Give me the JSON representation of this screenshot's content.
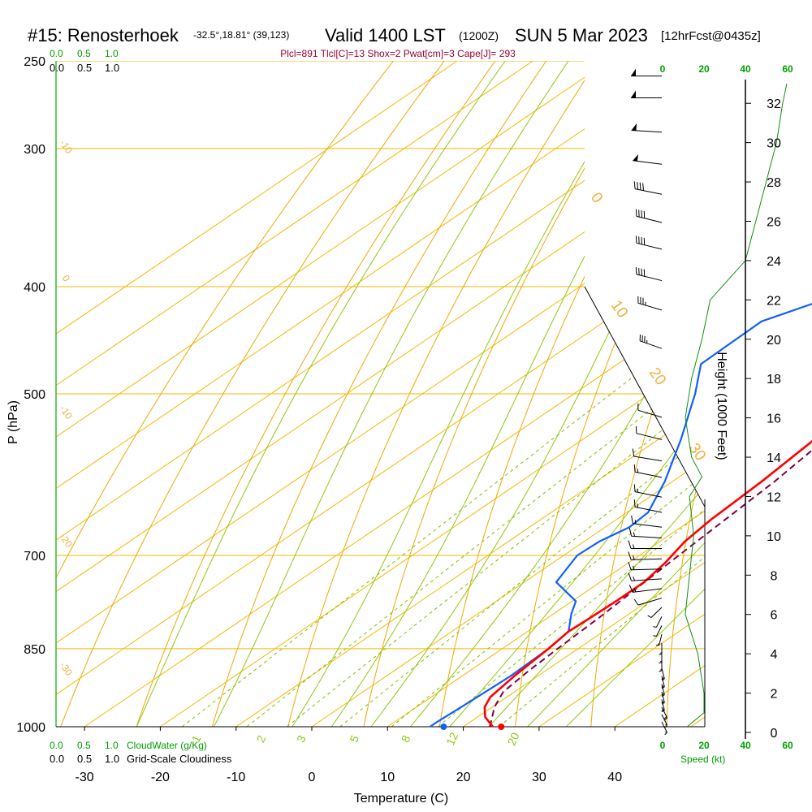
{
  "header": {
    "station": "#15: Renosterhoek",
    "coords": "-32.5°,18.81° (39,123)",
    "valid": "Valid 1400 LST",
    "zulu": "(1200Z)",
    "date": "SUN 5 Mar 2023",
    "forecast": "[12hrFcst@0435z]",
    "indices": "Plcl=891 Tlcl[C]=13 Shox=2 Pwat[cm]=3 Cape[J]= 293"
  },
  "labels": {
    "pressure_axis": "P (hPa)",
    "height_axis": "Height (1000 Feet)",
    "temp_axis": "Temperature (C)",
    "cloudwater": "CloudWater (g/Kg)",
    "cloudiness": "Grid-Scale Cloudiness",
    "speed": "Speed (kt)",
    "scale_a": [
      "0.0",
      "0.5",
      "1.0"
    ],
    "scale_b": [
      "0.0",
      "0.5",
      "1.0"
    ],
    "speed_ticks": [
      "0",
      "20",
      "40",
      "60"
    ]
  },
  "colors": {
    "isotherm": "#f5b800",
    "dry_adiabat": "#f0a800",
    "moist_adiabat": "#90c810",
    "mixing_ratio": "#80c000",
    "temperature": "#ff0000",
    "dewpoint": "#1060ff",
    "parcel": "#800040",
    "wind_speed": "#109010",
    "green_text": "#00a000"
  },
  "chart_data": {
    "type": "skew-t",
    "title": "#15: Renosterhoek Valid 1400 LST (1200Z) SUN 5 Mar 2023",
    "xlabel": "Temperature (C)",
    "ylabel": "P (hPa)",
    "x_ticks": [
      -30,
      -20,
      -10,
      0,
      10,
      20,
      30,
      40
    ],
    "p_ticks": [
      250,
      300,
      400,
      500,
      700,
      850,
      1000
    ],
    "height_ticks_kft": [
      0,
      2,
      4,
      6,
      8,
      10,
      12,
      14,
      16,
      18,
      20,
      22,
      24,
      26,
      28,
      30,
      32
    ],
    "isotherm_labels": [
      -30,
      -20,
      -10,
      0,
      10,
      20,
      30
    ],
    "mixing_ratio_labels": [
      "1",
      "2",
      "3",
      "5",
      "8",
      "12",
      "20"
    ],
    "temperature": [
      {
        "p": 1000,
        "t": 23.9
      },
      {
        "p": 980,
        "t": 21.0
      },
      {
        "p": 960,
        "t": 19.0
      },
      {
        "p": 940,
        "t": 17.8
      },
      {
        "p": 900,
        "t": 16.9
      },
      {
        "p": 850,
        "t": 16.1
      },
      {
        "p": 820,
        "t": 15.4
      },
      {
        "p": 800,
        "t": 15.6
      },
      {
        "p": 770,
        "t": 15.8
      },
      {
        "p": 740,
        "t": 15.8
      },
      {
        "p": 710,
        "t": 14.8
      },
      {
        "p": 680,
        "t": 13.3
      },
      {
        "p": 650,
        "t": 12.5
      },
      {
        "p": 600,
        "t": 11.8
      },
      {
        "p": 550,
        "t": 10.6
      },
      {
        "p": 500,
        "t": 9.3
      },
      {
        "p": 460,
        "t": 9.0
      },
      {
        "p": 430,
        "t": 8.7
      },
      {
        "p": 400,
        "t": 7.6
      },
      {
        "p": 350,
        "t": 5.6
      },
      {
        "p": 300,
        "t": 2.8
      },
      {
        "p": 275,
        "t": 1.9
      },
      {
        "p": 260,
        "t": 1.5
      }
    ],
    "dewpoint": [
      {
        "p": 1000,
        "t": 15.6
      },
      {
        "p": 990,
        "t": 15.6
      },
      {
        "p": 960,
        "t": 15.9
      },
      {
        "p": 900,
        "t": 16.4
      },
      {
        "p": 850,
        "t": 16.1
      },
      {
        "p": 820,
        "t": 15.4
      },
      {
        "p": 790,
        "t": 12.3
      },
      {
        "p": 770,
        "t": 10.5
      },
      {
        "p": 740,
        "t": 4.2
      },
      {
        "p": 700,
        "t": 1.8
      },
      {
        "p": 680,
        "t": 2.0
      },
      {
        "p": 660,
        "t": 3.2
      },
      {
        "p": 640,
        "t": 2.8
      },
      {
        "p": 600,
        "t": -1.0
      },
      {
        "p": 550,
        "t": -7.0
      },
      {
        "p": 500,
        "t": -14.0
      },
      {
        "p": 470,
        "t": -19.0
      },
      {
        "p": 430,
        "t": -19.3
      },
      {
        "p": 400,
        "t": -12.8
      },
      {
        "p": 370,
        "t": -12.3
      },
      {
        "p": 340,
        "t": -13.0
      },
      {
        "p": 300,
        "t": -14.2
      },
      {
        "p": 270,
        "t": -14.2
      },
      {
        "p": 260,
        "t": -13.8
      }
    ],
    "parcel": [
      {
        "p": 1000,
        "t": 23.5
      },
      {
        "p": 960,
        "t": 20.3
      },
      {
        "p": 930,
        "t": 18.5
      },
      {
        "p": 891,
        "t": 17.8
      },
      {
        "p": 850,
        "t": 17.3
      },
      {
        "p": 800,
        "t": 16.8
      },
      {
        "p": 700,
        "t": 15.2
      },
      {
        "p": 600,
        "t": 13.5
      },
      {
        "p": 550,
        "t": 12.0
      },
      {
        "p": 500,
        "t": 10.3
      },
      {
        "p": 460,
        "t": 9.1
      }
    ],
    "surface": {
      "t": 25.0,
      "td": 17.4
    },
    "wind_speed_kt": [
      {
        "h": 0.3,
        "s": 12
      },
      {
        "h": 1,
        "s": 20
      },
      {
        "h": 2,
        "s": 20
      },
      {
        "h": 4,
        "s": 17
      },
      {
        "h": 6,
        "s": 11
      },
      {
        "h": 8,
        "s": 13
      },
      {
        "h": 10,
        "s": 15
      },
      {
        "h": 12,
        "s": 13
      },
      {
        "h": 13,
        "s": 19
      },
      {
        "h": 14,
        "s": 14
      },
      {
        "h": 16,
        "s": 11
      },
      {
        "h": 18,
        "s": 14
      },
      {
        "h": 20,
        "s": 19
      },
      {
        "h": 22,
        "s": 23
      },
      {
        "h": 24,
        "s": 40
      },
      {
        "h": 26,
        "s": 45
      },
      {
        "h": 28,
        "s": 50
      },
      {
        "h": 30,
        "s": 55
      },
      {
        "h": 32,
        "s": 58
      },
      {
        "h": 33,
        "s": 60
      }
    ],
    "wind_barbs": [
      {
        "p": 990,
        "dir": 170,
        "spd": 15
      },
      {
        "p": 975,
        "dir": 170,
        "spd": 15
      },
      {
        "p": 960,
        "dir": 170,
        "spd": 20
      },
      {
        "p": 945,
        "dir": 175,
        "spd": 20
      },
      {
        "p": 930,
        "dir": 175,
        "spd": 20
      },
      {
        "p": 915,
        "dir": 175,
        "spd": 20
      },
      {
        "p": 900,
        "dir": 175,
        "spd": 20
      },
      {
        "p": 885,
        "dir": 175,
        "spd": 20
      },
      {
        "p": 870,
        "dir": 180,
        "spd": 15
      },
      {
        "p": 855,
        "dir": 180,
        "spd": 15
      },
      {
        "p": 840,
        "dir": 180,
        "spd": 15
      },
      {
        "p": 825,
        "dir": 185,
        "spd": 15
      },
      {
        "p": 810,
        "dir": 190,
        "spd": 10
      },
      {
        "p": 795,
        "dir": 190,
        "spd": 10
      },
      {
        "p": 780,
        "dir": 200,
        "spd": 10
      },
      {
        "p": 765,
        "dir": 230,
        "spd": 10
      },
      {
        "p": 750,
        "dir": 250,
        "spd": 15
      },
      {
        "p": 735,
        "dir": 260,
        "spd": 15
      },
      {
        "p": 720,
        "dir": 265,
        "spd": 15
      },
      {
        "p": 705,
        "dir": 265,
        "spd": 15
      },
      {
        "p": 690,
        "dir": 270,
        "spd": 15
      },
      {
        "p": 675,
        "dir": 280,
        "spd": 15
      },
      {
        "p": 660,
        "dir": 290,
        "spd": 15
      },
      {
        "p": 640,
        "dir": 300,
        "spd": 15
      },
      {
        "p": 620,
        "dir": 300,
        "spd": 15
      },
      {
        "p": 595,
        "dir": 300,
        "spd": 15
      },
      {
        "p": 575,
        "dir": 295,
        "spd": 10
      },
      {
        "p": 550,
        "dir": 305,
        "spd": 10
      },
      {
        "p": 525,
        "dir": 310,
        "spd": 10
      },
      {
        "p": 455,
        "dir": 315,
        "spd": 35
      },
      {
        "p": 420,
        "dir": 310,
        "spd": 35
      },
      {
        "p": 395,
        "dir": 305,
        "spd": 40
      },
      {
        "p": 370,
        "dir": 305,
        "spd": 40
      },
      {
        "p": 350,
        "dir": 305,
        "spd": 40
      },
      {
        "p": 330,
        "dir": 300,
        "spd": 40
      },
      {
        "p": 310,
        "dir": 290,
        "spd": 50
      },
      {
        "p": 290,
        "dir": 280,
        "spd": 50
      },
      {
        "p": 270,
        "dir": 270,
        "spd": 50
      },
      {
        "p": 258,
        "dir": 270,
        "spd": 50
      }
    ]
  }
}
